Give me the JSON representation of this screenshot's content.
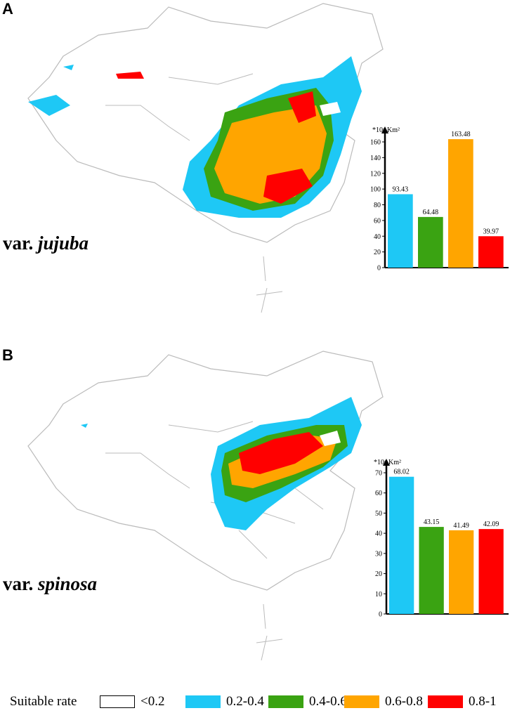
{
  "panels": [
    {
      "label": "A",
      "variety_prefix": "var. ",
      "variety_name": "jujuba"
    },
    {
      "label": "B",
      "variety_prefix": "var. ",
      "variety_name": "spinosa"
    }
  ],
  "legend": {
    "title": "Suitable rate",
    "items": [
      {
        "label": "<0.2",
        "color": "#ffffff"
      },
      {
        "label": "0.2-0.4",
        "color": "#1ec8f5"
      },
      {
        "label": "0.4-0.6",
        "color": "#3aa312"
      },
      {
        "label": "0.6-0.8",
        "color": "#ffa500"
      },
      {
        "label": "0.8-1",
        "color": "#ff0000"
      }
    ]
  },
  "chart_data": [
    {
      "type": "bar",
      "unit_label": "*10⁴ Km²",
      "categories": [
        "0.2-0.4",
        "0.4-0.6",
        "0.6-0.8",
        "0.8-1"
      ],
      "values": [
        93.43,
        64.48,
        163.48,
        39.97
      ],
      "value_labels": [
        "93.43",
        "64.48",
        "163.48",
        "39.97"
      ],
      "colors": [
        "#1ec8f5",
        "#3aa312",
        "#ffa500",
        "#ff0000"
      ],
      "ylim": [
        0,
        160
      ],
      "yticks": [
        0,
        20,
        40,
        60,
        80,
        100,
        120,
        140,
        160
      ]
    },
    {
      "type": "bar",
      "unit_label": "*10⁴ Km²",
      "categories": [
        "0.2-0.4",
        "0.4-0.6",
        "0.6-0.8",
        "0.8-1"
      ],
      "values": [
        68.02,
        43.15,
        41.49,
        42.09
      ],
      "value_labels": [
        "68.02",
        "43.15",
        "41.49",
        "42.09"
      ],
      "colors": [
        "#1ec8f5",
        "#3aa312",
        "#ffa500",
        "#ff0000"
      ],
      "ylim": [
        0,
        70
      ],
      "yticks": [
        0,
        10,
        20,
        30,
        40,
        50,
        60,
        70
      ]
    }
  ]
}
